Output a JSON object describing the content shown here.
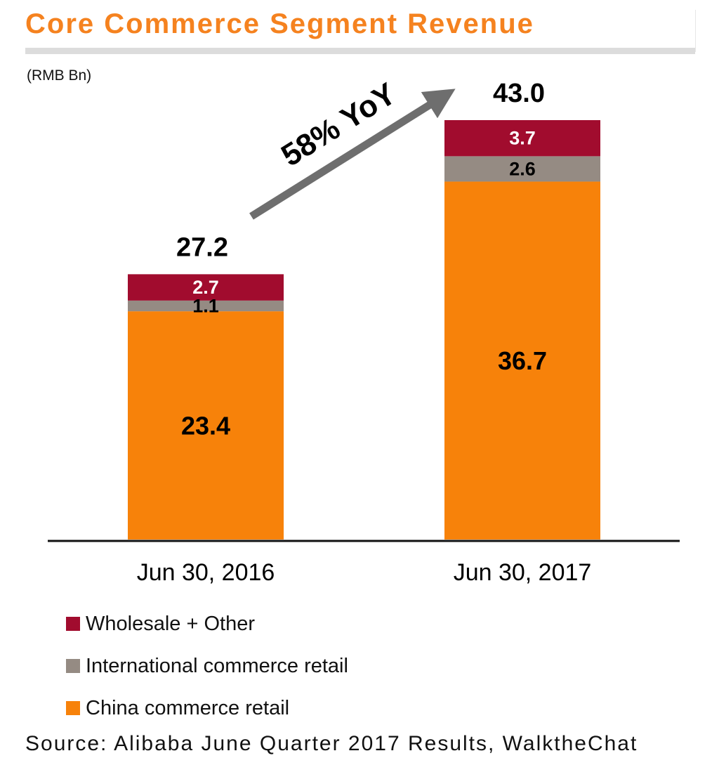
{
  "title": "Core Commerce Segment Revenue",
  "unit": "(RMB Bn)",
  "annotation": "58% YoY",
  "source": "Source: Alibaba June Quarter 2017 Results, WalktheChat",
  "colors": {
    "title": "#f5821f",
    "china": "#f7820a",
    "international": "#958b83",
    "wholesale": "#a10c2e",
    "arrow": "#6e6e6e",
    "axis": "#111111"
  },
  "chart_data": {
    "type": "bar",
    "stacked": true,
    "title": "Core Commerce Segment Revenue",
    "ylabel": "(RMB Bn)",
    "categories": [
      "Jun 30, 2016",
      "Jun 30, 2017"
    ],
    "series": [
      {
        "name": "China commerce retail",
        "values": [
          23.4,
          36.7
        ],
        "labels": [
          "23.4",
          "36.7"
        ],
        "color": "#f7820a"
      },
      {
        "name": "International commerce retail",
        "values": [
          1.1,
          2.6
        ],
        "labels": [
          "1.1",
          "2.6"
        ],
        "color": "#958b83"
      },
      {
        "name": "Wholesale + Other",
        "values": [
          2.7,
          3.7
        ],
        "labels": [
          "2.7",
          "3.7"
        ],
        "color": "#a10c2e"
      }
    ],
    "totals": [
      27.2,
      43.0
    ],
    "total_labels": [
      "27.2",
      "43.0"
    ],
    "ylim": [
      0,
      43
    ]
  },
  "legend": [
    {
      "label": "Wholesale + Other",
      "color": "#a10c2e"
    },
    {
      "label": "International commerce retail",
      "color": "#958b83"
    },
    {
      "label": "China commerce retail",
      "color": "#f7820a"
    }
  ]
}
